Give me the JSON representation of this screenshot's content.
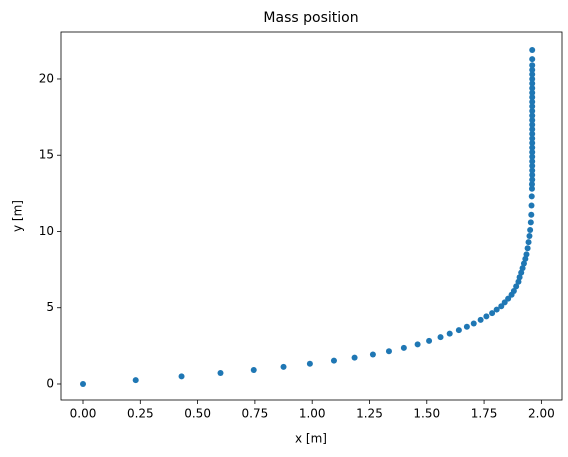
{
  "chart_data": {
    "type": "scatter",
    "title": "Mass position",
    "xlabel": "x [m]",
    "ylabel": "y [m]",
    "series": [
      {
        "color": "#1f77b4",
        "x": [
          0,
          0.23,
          0.43,
          0.6,
          0.745,
          0.875,
          0.99,
          1.095,
          1.185,
          1.265,
          1.335,
          1.4,
          1.46,
          1.51,
          1.56,
          1.6,
          1.64,
          1.675,
          1.705,
          1.735,
          1.76,
          1.785,
          1.805,
          1.825,
          1.84,
          1.855,
          1.87,
          1.88,
          1.89,
          1.9,
          1.905,
          1.912,
          1.918,
          1.924,
          1.93,
          1.935,
          1.94,
          1.944,
          1.948,
          1.951,
          1.954,
          1.956,
          1.957,
          1.958,
          1.959,
          1.959,
          1.96,
          1.96,
          1.96,
          1.96,
          1.96,
          1.96,
          1.96,
          1.96,
          1.96,
          1.96,
          1.96,
          1.96,
          1.96,
          1.96,
          1.96,
          1.96,
          1.96,
          1.96,
          1.96,
          1.96,
          1.96,
          1.96,
          1.96,
          1.96,
          1.96,
          1.96,
          1.96,
          1.96
        ],
        "y": [
          0,
          0.25,
          0.5,
          0.72,
          0.92,
          1.12,
          1.33,
          1.53,
          1.73,
          1.93,
          2.15,
          2.37,
          2.6,
          2.83,
          3.07,
          3.3,
          3.53,
          3.75,
          3.97,
          4.2,
          4.43,
          4.65,
          4.88,
          5.1,
          5.35,
          5.6,
          5.85,
          6.1,
          6.4,
          6.7,
          7.0,
          7.3,
          7.6,
          7.9,
          8.2,
          8.5,
          8.9,
          9.3,
          9.7,
          10.1,
          10.6,
          11.1,
          11.7,
          12.3,
          12.8,
          13.1,
          13.4,
          13.7,
          14.0,
          14.3,
          14.6,
          14.9,
          15.2,
          15.5,
          15.8,
          16.1,
          16.4,
          16.7,
          17.0,
          17.3,
          17.6,
          17.9,
          18.2,
          18.5,
          18.8,
          19.1,
          19.4,
          19.7,
          20.0,
          20.3,
          20.6,
          20.9,
          21.3,
          21.9
        ]
      }
    ],
    "xlim": [
      -0.096,
      2.09
    ],
    "ylim": [
      -1.05,
      23.08
    ],
    "xticks": [
      {
        "value": 0,
        "label": "0.00"
      },
      {
        "value": 0.25,
        "label": "0.25"
      },
      {
        "value": 0.5,
        "label": "0.50"
      },
      {
        "value": 0.75,
        "label": "0.75"
      },
      {
        "value": 1,
        "label": "1.00"
      },
      {
        "value": 1.25,
        "label": "1.25"
      },
      {
        "value": 1.5,
        "label": "1.50"
      },
      {
        "value": 1.75,
        "label": "1.75"
      },
      {
        "value": 2,
        "label": "2.00"
      }
    ],
    "yticks": [
      0,
      5,
      10,
      15,
      20
    ]
  }
}
